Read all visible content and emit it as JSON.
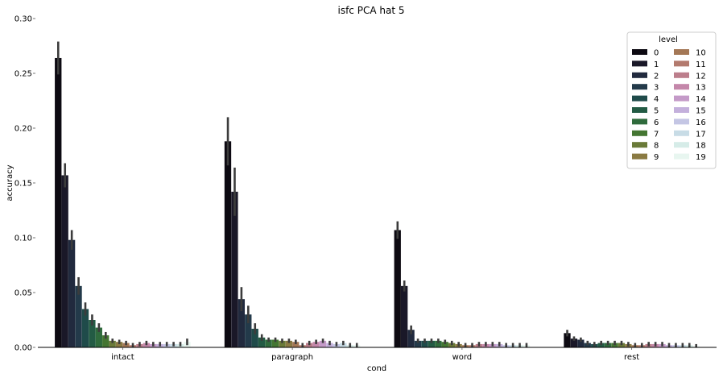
{
  "chart_data": {
    "type": "bar",
    "title": "isfc PCA hat 5",
    "xlabel": "cond",
    "ylabel": "accuracy",
    "ylim": [
      0,
      0.3
    ],
    "yticks": [
      "0.00",
      "0.05",
      "0.10",
      "0.15",
      "0.20",
      "0.25",
      "0.30"
    ],
    "ytick_values": [
      0,
      0.05,
      0.1,
      0.15,
      0.2,
      0.25,
      0.3
    ],
    "categories": [
      "intact",
      "paragraph",
      "word",
      "rest"
    ],
    "legend": {
      "title": "level",
      "placement": "top-right",
      "columns": 2
    },
    "grid": false,
    "series": [
      {
        "name": "0",
        "color": "#0d0a12",
        "values": [
          0.264,
          0.188,
          0.107,
          0.013
        ],
        "err": [
          0.015,
          0.022,
          0.008,
          0.003
        ]
      },
      {
        "name": "1",
        "color": "#1a1828",
        "values": [
          0.157,
          0.142,
          0.056,
          0.008
        ],
        "err": [
          0.011,
          0.022,
          0.005,
          0.002
        ]
      },
      {
        "name": "2",
        "color": "#212a3e",
        "values": [
          0.098,
          0.044,
          0.016,
          0.007
        ],
        "err": [
          0.009,
          0.011,
          0.004,
          0.002
        ]
      },
      {
        "name": "3",
        "color": "#233a4a",
        "values": [
          0.056,
          0.03,
          0.006,
          0.004
        ],
        "err": [
          0.008,
          0.008,
          0.002,
          0.002
        ]
      },
      {
        "name": "4",
        "color": "#1f4b4a",
        "values": [
          0.035,
          0.017,
          0.006,
          0.003
        ],
        "err": [
          0.006,
          0.005,
          0.002,
          0.002
        ]
      },
      {
        "name": "5",
        "color": "#235b44",
        "values": [
          0.025,
          0.009,
          0.006,
          0.004
        ],
        "err": [
          0.005,
          0.003,
          0.002,
          0.002
        ]
      },
      {
        "name": "6",
        "color": "#2f6b3c",
        "values": [
          0.018,
          0.007,
          0.006,
          0.004
        ],
        "err": [
          0.004,
          0.002,
          0.002,
          0.002
        ]
      },
      {
        "name": "7",
        "color": "#447632",
        "values": [
          0.011,
          0.007,
          0.005,
          0.004
        ],
        "err": [
          0.003,
          0.002,
          0.002,
          0.002
        ]
      },
      {
        "name": "8",
        "color": "#6a7a38",
        "values": [
          0.006,
          0.006,
          0.004,
          0.004
        ],
        "err": [
          0.002,
          0.002,
          0.002,
          0.002
        ]
      },
      {
        "name": "9",
        "color": "#8a7a42",
        "values": [
          0.005,
          0.006,
          0.003,
          0.003
        ],
        "err": [
          0.002,
          0.002,
          0.002,
          0.002
        ]
      },
      {
        "name": "10",
        "color": "#a47856",
        "values": [
          0.004,
          0.005,
          0.002,
          0.002
        ],
        "err": [
          0.002,
          0.002,
          0.002,
          0.002
        ]
      },
      {
        "name": "11",
        "color": "#b37a6e",
        "values": [
          0.002,
          0.002,
          0.002,
          0.002
        ],
        "err": [
          0.002,
          0.002,
          0.002,
          0.002
        ]
      },
      {
        "name": "12",
        "color": "#bc7e8c",
        "values": [
          0.003,
          0.004,
          0.003,
          0.003
        ],
        "err": [
          0.002,
          0.002,
          0.002,
          0.002
        ]
      },
      {
        "name": "13",
        "color": "#c487aa",
        "values": [
          0.004,
          0.005,
          0.003,
          0.003
        ],
        "err": [
          0.002,
          0.002,
          0.002,
          0.002
        ]
      },
      {
        "name": "14",
        "color": "#c49ac8",
        "values": [
          0.003,
          0.006,
          0.003,
          0.003
        ],
        "err": [
          0.002,
          0.002,
          0.002,
          0.002
        ]
      },
      {
        "name": "15",
        "color": "#c4b0dc",
        "values": [
          0.003,
          0.004,
          0.003,
          0.002
        ],
        "err": [
          0.002,
          0.002,
          0.002,
          0.002
        ]
      },
      {
        "name": "16",
        "color": "#c4c6e4",
        "values": [
          0.003,
          0.003,
          0.002,
          0.002
        ],
        "err": [
          0.002,
          0.002,
          0.002,
          0.002
        ]
      },
      {
        "name": "17",
        "color": "#c8dce6",
        "values": [
          0.003,
          0.004,
          0.002,
          0.002
        ],
        "err": [
          0.002,
          0.002,
          0.002,
          0.002
        ]
      },
      {
        "name": "18",
        "color": "#d6ece8",
        "values": [
          0.003,
          0.002,
          0.002,
          0.002
        ],
        "err": [
          0.002,
          0.002,
          0.002,
          0.002
        ]
      },
      {
        "name": "19",
        "color": "#e8f6f0",
        "values": [
          0.005,
          0.002,
          0.002,
          0.001
        ],
        "err": [
          0.003,
          0.002,
          0.002,
          0.002
        ]
      }
    ]
  }
}
